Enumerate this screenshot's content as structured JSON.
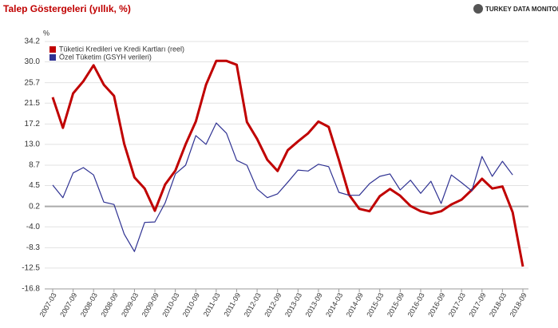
{
  "chart_data": {
    "type": "line",
    "title": "Talep Göstergeleri (yıllık, %)",
    "source": "TURKEY DATA MONITOR",
    "y_label": "%",
    "categories": [
      "2007-03",
      null,
      "2007-09",
      null,
      "2008-03",
      null,
      "2008-09",
      null,
      "2009-03",
      null,
      "2009-09",
      null,
      "2010-03",
      null,
      "2010-09",
      null,
      "2011-03",
      null,
      "2011-09",
      null,
      "2012-03",
      null,
      "2012-09",
      null,
      "2013-03",
      null,
      "2013-09",
      null,
      "2014-03",
      null,
      "2014-09",
      null,
      "2015-03",
      null,
      "2015-09",
      null,
      "2016-03",
      null,
      "2016-09",
      null,
      "2017-03",
      null,
      "2017-09",
      null,
      "2018-03",
      null,
      "2018-09"
    ],
    "series": [
      {
        "name": "Tüketici Kredileri ve Kredi Kartları (reel)",
        "color": "#c00000",
        "width": 3,
        "values": [
          22.7,
          16.4,
          23.5,
          26.0,
          29.3,
          25.3,
          23.0,
          13.1,
          6.2,
          3.9,
          -0.7,
          4.7,
          7.6,
          13.0,
          17.7,
          25.3,
          30.2,
          30.2,
          29.4,
          17.6,
          14.1,
          9.8,
          7.5,
          11.8,
          13.6,
          15.3,
          17.7,
          16.6,
          9.8,
          2.6,
          -0.3,
          -0.8,
          2.3,
          3.8,
          2.4,
          0.3,
          -0.8,
          -1.3,
          -0.8,
          0.6,
          1.6,
          3.6,
          5.9,
          3.9,
          4.3,
          -1.0,
          -12.2
        ]
      },
      {
        "name": "Özel Tüketim (GSYH verileri)",
        "color": "#2e3192",
        "width": 1.2,
        "values": [
          4.6,
          2.0,
          7.1,
          8.2,
          6.7,
          1.1,
          0.6,
          -5.5,
          -9.1,
          -3.1,
          -3.0,
          0.9,
          6.9,
          8.7,
          14.8,
          13.0,
          17.4,
          15.3,
          9.7,
          8.7,
          3.8,
          2.0,
          2.8,
          5.2,
          7.7,
          7.5,
          8.9,
          8.4,
          3.1,
          2.5,
          2.5,
          4.9,
          6.4,
          6.9,
          3.6,
          5.6,
          2.9,
          5.4,
          0.8,
          6.7,
          5.1,
          3.4,
          10.5,
          6.4,
          9.5,
          6.7,
          null
        ]
      }
    ],
    "ylim": [
      -16.8,
      34.2
    ],
    "yticks": [
      34.2,
      {
        "value": 30,
        "label": "30.0"
      },
      25.7,
      21.5,
      17.2,
      {
        "value": 13,
        "label": "13.0"
      },
      8.7,
      4.5,
      0.2,
      {
        "value": -4,
        "label": "-4.0"
      },
      -8.3,
      -12.5,
      -16.8
    ],
    "grid": true,
    "legend": "top-left"
  }
}
